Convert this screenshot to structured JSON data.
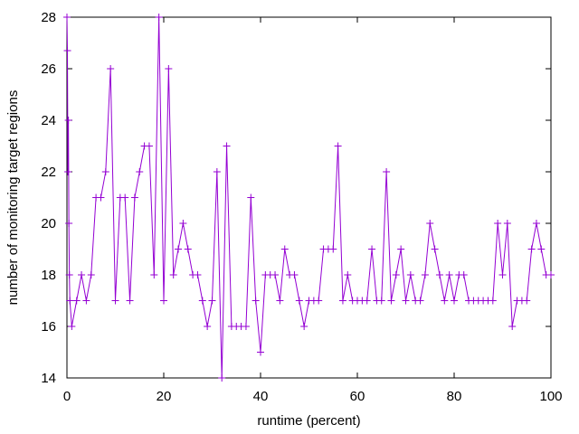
{
  "chart_data": {
    "type": "line",
    "title": "",
    "xlabel": "runtime (percent)",
    "ylabel": "number of monitoring target regions",
    "xlim": [
      0,
      100
    ],
    "ylim": [
      14,
      28
    ],
    "xticks": [
      "0",
      "20",
      "40",
      "60",
      "80",
      "100"
    ],
    "yticks": [
      "14",
      "16",
      "18",
      "20",
      "22",
      "24",
      "26",
      "28"
    ],
    "grid": false,
    "legend": "none",
    "series": [
      {
        "color": "#9400d3",
        "marker": "plus",
        "x": [
          0,
          0.1,
          0.2,
          0.3,
          0.4,
          0.5,
          0.6,
          1,
          2,
          3,
          4,
          5,
          6,
          7,
          8,
          9,
          10,
          11,
          12,
          13,
          14,
          15,
          16,
          17,
          18,
          19,
          20,
          21,
          22,
          23,
          24,
          25,
          26,
          27,
          28,
          29,
          30,
          31,
          32,
          33,
          34,
          35,
          36,
          37,
          38,
          39,
          40,
          41,
          42,
          43,
          44,
          45,
          46,
          47,
          48,
          49,
          50,
          51,
          52,
          53,
          54,
          55,
          56,
          57,
          58,
          59,
          60,
          61,
          62,
          63,
          64,
          65,
          66,
          67,
          68,
          69,
          70,
          71,
          72,
          73,
          74,
          75,
          76,
          77,
          78,
          79,
          80,
          81,
          82,
          83,
          84,
          85,
          86,
          87,
          88,
          89,
          90,
          91,
          92,
          93,
          94,
          95,
          96,
          97,
          98,
          99,
          100
        ],
        "y": [
          28,
          26.7,
          22,
          24,
          20,
          18,
          17,
          16,
          17,
          18,
          17,
          18,
          21,
          21,
          22,
          26,
          17,
          21,
          21,
          17,
          21,
          22,
          23,
          23,
          18,
          28,
          17,
          26,
          18,
          19,
          20,
          19,
          18,
          18,
          17,
          16,
          17,
          22,
          14,
          23,
          16,
          16,
          16,
          16,
          21,
          17,
          15,
          18,
          18,
          18,
          17,
          19,
          18,
          18,
          17,
          16,
          17,
          17,
          17,
          19,
          19,
          19,
          23,
          17,
          18,
          17,
          17,
          17,
          17,
          19,
          17,
          17,
          22,
          17,
          18,
          19,
          17,
          18,
          17,
          17,
          18,
          20,
          19,
          18,
          17,
          18,
          17,
          18,
          18,
          17,
          17,
          17,
          17,
          17,
          17,
          20,
          18,
          20,
          16,
          17,
          17,
          17,
          19,
          20,
          19,
          18,
          18
        ]
      }
    ]
  }
}
